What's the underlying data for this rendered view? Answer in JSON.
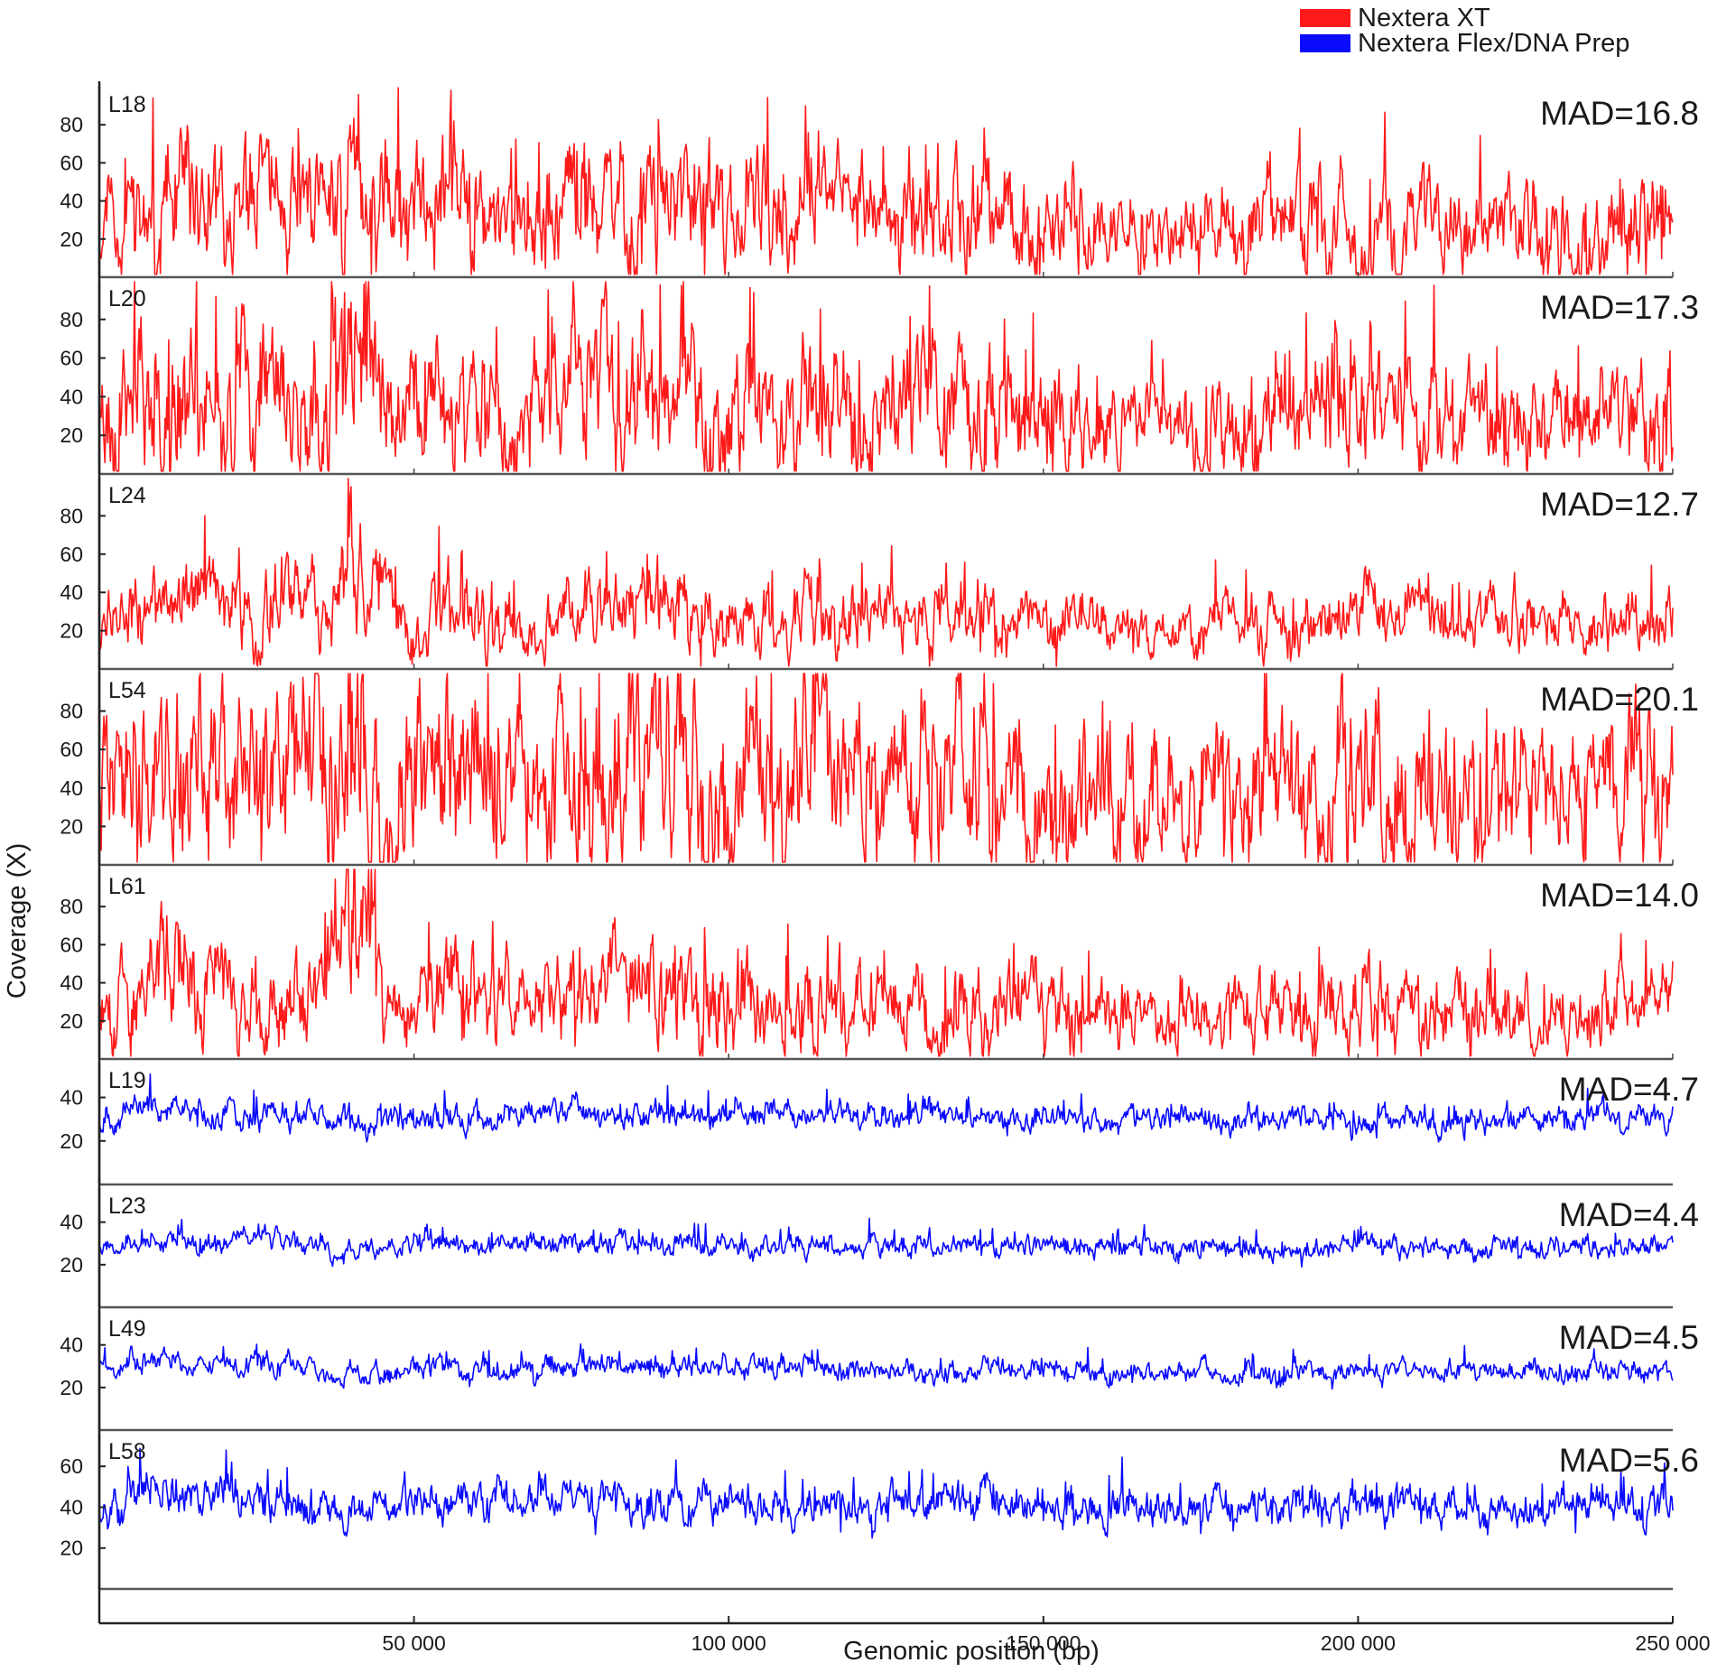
{
  "legend": {
    "placement": "top-right",
    "items": [
      {
        "label": "Nextera XT",
        "color": "#ff1a1a"
      },
      {
        "label": "Nextera Flex/DNA Prep",
        "color": "#0a0aff"
      }
    ]
  },
  "chart_data": {
    "type": "line",
    "xlabel": "Genomic position  (bp)",
    "ylabel": "Coverage (X)",
    "xlim": [
      0,
      250000
    ],
    "x_ticks": [
      {
        "value": 50000,
        "label": "50 000"
      },
      {
        "value": 100000,
        "label": "100 000"
      },
      {
        "value": 150000,
        "label": "150 000"
      },
      {
        "value": 200000,
        "label": "200 000"
      },
      {
        "value": 250000,
        "label": "250 000"
      }
    ],
    "grid": false,
    "series": [
      {
        "name": "L18",
        "mad_label": "MAD=16.8",
        "kit": "Nextera XT",
        "color": "#ff1a1a",
        "ylim": [
          0,
          100
        ],
        "yticks": [
          {
            "value": 20,
            "label": "20"
          },
          {
            "value": 40,
            "label": "40"
          },
          {
            "value": 60,
            "label": "60"
          },
          {
            "value": 80,
            "label": "80"
          }
        ],
        "x": [
          0,
          5000,
          10000,
          15000,
          20000,
          25000,
          30000,
          35000,
          38000,
          40000,
          42000,
          45000,
          50000,
          55000,
          60000,
          65000,
          70000,
          75000,
          80000,
          85000,
          90000,
          95000,
          100000,
          105000,
          110000,
          113000,
          115000,
          120000,
          125000,
          130000,
          135000,
          140000,
          145000,
          150000,
          155000,
          160000,
          165000,
          170000,
          175000,
          180000,
          185000,
          190000,
          195000,
          200000,
          205000,
          210000,
          215000,
          220000,
          225000,
          230000,
          235000,
          240000,
          245000,
          250000
        ],
        "values": [
          30,
          34,
          38,
          40,
          36,
          34,
          35,
          38,
          48,
          60,
          52,
          34,
          32,
          36,
          38,
          32,
          30,
          34,
          36,
          38,
          40,
          36,
          34,
          32,
          30,
          42,
          36,
          32,
          30,
          34,
          32,
          36,
          30,
          28,
          30,
          26,
          24,
          22,
          24,
          26,
          28,
          30,
          32,
          34,
          30,
          28,
          26,
          28,
          30,
          26,
          24,
          28,
          30,
          32
        ],
        "amp": 1.0,
        "seed": 11
      },
      {
        "name": "L20",
        "mad_label": "MAD=17.3",
        "kit": "Nextera XT",
        "color": "#ff1a1a",
        "ylim": [
          0,
          100
        ],
        "yticks": [
          {
            "value": 20,
            "label": "20"
          },
          {
            "value": 40,
            "label": "40"
          },
          {
            "value": 60,
            "label": "60"
          },
          {
            "value": 80,
            "label": "80"
          }
        ],
        "x": [
          0,
          5000,
          10000,
          15000,
          20000,
          25000,
          30000,
          35000,
          38000,
          40000,
          42000,
          45000,
          50000,
          55000,
          60000,
          65000,
          70000,
          75000,
          80000,
          85000,
          90000,
          95000,
          100000,
          105000,
          110000,
          113000,
          115000,
          120000,
          125000,
          130000,
          135000,
          140000,
          145000,
          150000,
          155000,
          160000,
          165000,
          170000,
          175000,
          180000,
          185000,
          190000,
          195000,
          200000,
          205000,
          210000,
          215000,
          220000,
          225000,
          230000,
          235000,
          240000,
          245000,
          250000
        ],
        "values": [
          36,
          40,
          44,
          42,
          40,
          36,
          38,
          42,
          54,
          68,
          58,
          36,
          34,
          38,
          40,
          36,
          34,
          38,
          40,
          42,
          44,
          40,
          38,
          36,
          34,
          46,
          40,
          36,
          34,
          38,
          36,
          40,
          34,
          30,
          32,
          28,
          26,
          24,
          26,
          28,
          30,
          34,
          36,
          38,
          34,
          30,
          28,
          30,
          34,
          28,
          26,
          30,
          32,
          34
        ],
        "amp": 1.05,
        "seed": 23
      },
      {
        "name": "L24",
        "mad_label": "MAD=12.7",
        "kit": "Nextera XT",
        "color": "#ff1a1a",
        "ylim": [
          0,
          100
        ],
        "yticks": [
          {
            "value": 20,
            "label": "20"
          },
          {
            "value": 40,
            "label": "40"
          },
          {
            "value": 60,
            "label": "60"
          },
          {
            "value": 80,
            "label": "80"
          }
        ],
        "x": [
          0,
          5000,
          10000,
          15000,
          20000,
          25000,
          30000,
          35000,
          38000,
          40000,
          42000,
          45000,
          50000,
          55000,
          60000,
          65000,
          70000,
          75000,
          80000,
          85000,
          90000,
          95000,
          100000,
          105000,
          110000,
          113000,
          115000,
          120000,
          125000,
          130000,
          135000,
          140000,
          145000,
          150000,
          155000,
          160000,
          165000,
          170000,
          175000,
          180000,
          185000,
          190000,
          195000,
          200000,
          205000,
          210000,
          215000,
          220000,
          225000,
          230000,
          235000,
          240000,
          245000,
          250000
        ],
        "values": [
          26,
          30,
          34,
          36,
          32,
          30,
          31,
          34,
          42,
          52,
          46,
          30,
          28,
          32,
          34,
          28,
          26,
          30,
          32,
          34,
          36,
          32,
          30,
          28,
          26,
          36,
          32,
          28,
          26,
          30,
          28,
          32,
          26,
          24,
          26,
          22,
          20,
          18,
          20,
          22,
          24,
          26,
          28,
          30,
          26,
          24,
          22,
          24,
          26,
          22,
          20,
          24,
          26,
          28
        ],
        "amp": 0.72,
        "seed": 37
      },
      {
        "name": "L54",
        "mad_label": "MAD=20.1",
        "kit": "Nextera XT",
        "color": "#ff1a1a",
        "ylim": [
          0,
          100
        ],
        "yticks": [
          {
            "value": 20,
            "label": "20"
          },
          {
            "value": 40,
            "label": "40"
          },
          {
            "value": 60,
            "label": "60"
          },
          {
            "value": 80,
            "label": "80"
          }
        ],
        "x": [
          0,
          5000,
          10000,
          15000,
          20000,
          25000,
          30000,
          35000,
          38000,
          40000,
          42000,
          45000,
          50000,
          55000,
          60000,
          65000,
          70000,
          75000,
          80000,
          85000,
          90000,
          95000,
          100000,
          105000,
          110000,
          113000,
          115000,
          120000,
          125000,
          130000,
          135000,
          140000,
          145000,
          150000,
          155000,
          160000,
          165000,
          170000,
          175000,
          180000,
          185000,
          190000,
          195000,
          200000,
          205000,
          210000,
          215000,
          220000,
          225000,
          230000,
          235000,
          240000,
          245000,
          250000
        ],
        "values": [
          40,
          46,
          50,
          48,
          46,
          42,
          44,
          48,
          58,
          72,
          62,
          42,
          40,
          44,
          46,
          42,
          40,
          44,
          46,
          48,
          50,
          46,
          44,
          42,
          40,
          52,
          46,
          42,
          40,
          44,
          42,
          46,
          40,
          36,
          38,
          34,
          32,
          30,
          32,
          34,
          36,
          40,
          42,
          44,
          40,
          36,
          34,
          36,
          40,
          34,
          32,
          36,
          38,
          40
        ],
        "amp": 1.2,
        "seed": 41
      },
      {
        "name": "L61",
        "mad_label": "MAD=14.0",
        "kit": "Nextera XT",
        "color": "#ff1a1a",
        "ylim": [
          0,
          100
        ],
        "yticks": [
          {
            "value": 20,
            "label": "20"
          },
          {
            "value": 40,
            "label": "40"
          },
          {
            "value": 60,
            "label": "60"
          },
          {
            "value": 80,
            "label": "80"
          }
        ],
        "x": [
          0,
          5000,
          10000,
          15000,
          20000,
          25000,
          30000,
          35000,
          38000,
          40000,
          42000,
          45000,
          50000,
          55000,
          60000,
          65000,
          70000,
          75000,
          80000,
          85000,
          90000,
          95000,
          100000,
          105000,
          110000,
          113000,
          115000,
          120000,
          125000,
          130000,
          135000,
          140000,
          145000,
          150000,
          155000,
          160000,
          165000,
          170000,
          175000,
          180000,
          185000,
          190000,
          195000,
          200000,
          205000,
          210000,
          215000,
          220000,
          225000,
          230000,
          235000,
          240000,
          245000,
          250000
        ],
        "values": [
          30,
          34,
          38,
          40,
          34,
          32,
          33,
          36,
          50,
          70,
          56,
          32,
          30,
          34,
          36,
          30,
          28,
          32,
          34,
          36,
          38,
          34,
          32,
          30,
          28,
          40,
          34,
          30,
          28,
          32,
          30,
          36,
          28,
          26,
          28,
          24,
          22,
          20,
          22,
          24,
          26,
          28,
          30,
          32,
          28,
          26,
          24,
          26,
          28,
          24,
          22,
          26,
          28,
          30
        ],
        "amp": 0.85,
        "seed": 53
      },
      {
        "name": "L19",
        "mad_label": "MAD=4.7",
        "kit": "Nextera Flex/DNA Prep",
        "color": "#0a0aff",
        "ylim": [
          0,
          56
        ],
        "yticks": [
          {
            "value": 20,
            "label": "20"
          },
          {
            "value": 40,
            "label": "40"
          }
        ],
        "x": [
          0,
          10000,
          20000,
          30000,
          38000,
          40000,
          42000,
          50000,
          60000,
          70000,
          80000,
          90000,
          100000,
          110000,
          120000,
          130000,
          140000,
          150000,
          160000,
          170000,
          180000,
          190000,
          200000,
          210000,
          220000,
          230000,
          240000,
          250000
        ],
        "values": [
          32,
          34,
          33,
          33,
          26,
          30,
          28,
          33,
          32,
          32,
          32,
          32,
          32,
          31,
          32,
          32,
          31,
          31,
          30,
          30,
          30,
          30,
          31,
          30,
          30,
          30,
          30,
          30
        ],
        "amp": 0.22,
        "seed": 67
      },
      {
        "name": "L23",
        "mad_label": "MAD=4.4",
        "kit": "Nextera Flex/DNA Prep",
        "color": "#0a0aff",
        "ylim": [
          0,
          56
        ],
        "yticks": [
          {
            "value": 20,
            "label": "20"
          },
          {
            "value": 40,
            "label": "40"
          }
        ],
        "x": [
          0,
          10000,
          20000,
          30000,
          38000,
          40000,
          42000,
          50000,
          60000,
          70000,
          80000,
          90000,
          100000,
          110000,
          120000,
          130000,
          140000,
          150000,
          160000,
          170000,
          180000,
          190000,
          200000,
          210000,
          220000,
          230000,
          240000,
          250000
        ],
        "values": [
          30,
          31,
          31,
          32,
          24,
          28,
          26,
          30,
          30,
          30,
          30,
          30,
          30,
          29,
          29,
          29,
          29,
          29,
          28,
          28,
          28,
          28,
          28,
          28,
          28,
          28,
          28,
          28
        ],
        "amp": 0.2,
        "seed": 79
      },
      {
        "name": "L49",
        "mad_label": "MAD=4.5",
        "kit": "Nextera Flex/DNA Prep",
        "color": "#0a0aff",
        "ylim": [
          0,
          56
        ],
        "yticks": [
          {
            "value": 20,
            "label": "20"
          },
          {
            "value": 40,
            "label": "40"
          }
        ],
        "x": [
          0,
          10000,
          20000,
          30000,
          38000,
          40000,
          42000,
          50000,
          60000,
          70000,
          80000,
          90000,
          100000,
          110000,
          120000,
          130000,
          140000,
          150000,
          160000,
          170000,
          180000,
          190000,
          200000,
          210000,
          220000,
          230000,
          240000,
          250000
        ],
        "values": [
          30,
          32,
          31,
          31,
          22,
          28,
          24,
          30,
          29,
          29,
          29,
          29,
          29,
          29,
          28,
          28,
          28,
          28,
          27,
          27,
          27,
          27,
          28,
          28,
          27,
          27,
          27,
          27
        ],
        "amp": 0.21,
        "seed": 89
      },
      {
        "name": "L58",
        "mad_label": "MAD=5.6",
        "kit": "Nextera Flex/DNA Prep",
        "color": "#0a0aff",
        "ylim": [
          0,
          76
        ],
        "yticks": [
          {
            "value": 20,
            "label": "20"
          },
          {
            "value": 40,
            "label": "40"
          },
          {
            "value": 60,
            "label": "60"
          }
        ],
        "x": [
          0,
          10000,
          20000,
          30000,
          38000,
          40000,
          42000,
          50000,
          60000,
          70000,
          80000,
          90000,
          100000,
          110000,
          120000,
          130000,
          140000,
          150000,
          160000,
          170000,
          180000,
          190000,
          200000,
          210000,
          220000,
          230000,
          240000,
          250000
        ],
        "values": [
          44,
          46,
          45,
          46,
          34,
          40,
          36,
          44,
          43,
          43,
          43,
          43,
          42,
          42,
          42,
          42,
          42,
          41,
          40,
          40,
          40,
          40,
          40,
          40,
          40,
          40,
          40,
          40
        ],
        "amp": 0.26,
        "seed": 97
      }
    ]
  }
}
